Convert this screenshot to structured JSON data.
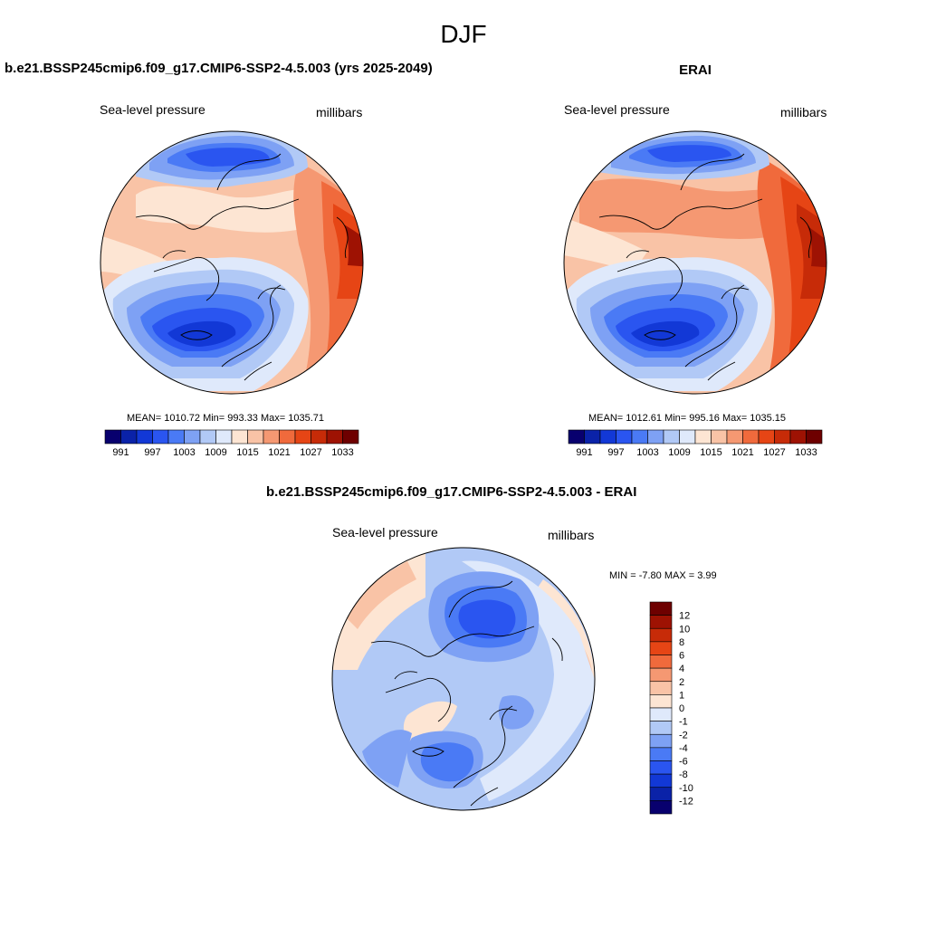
{
  "main_title": "DJF",
  "panels": [
    {
      "title": "b.e21.BSSP245cmip6.f09_g17.CMIP6-SSP2-4.5.003 (yrs 2025-2049)",
      "left_label": "Sea-level pressure",
      "right_label": "millibars",
      "stats_text": "MEAN= 1010.72  Min= 993.33  Max= 1035.71"
    },
    {
      "title": "ERAI",
      "left_label": "Sea-level pressure",
      "right_label": "millibars",
      "stats_text": "MEAN= 1012.61  Min= 995.16  Max= 1035.15"
    },
    {
      "title": "b.e21.BSSP245cmip6.f09_g17.CMIP6-SSP2-4.5.003 - ERAI",
      "left_label": "Sea-level pressure",
      "right_label": "millibars",
      "stats_text": "MIN =  -7.80 MAX =   3.99"
    }
  ],
  "chart_data": [
    {
      "type": "heatmap",
      "projection": "north polar stereographic",
      "variable": "Sea-level pressure",
      "units": "millibars",
      "summary": {
        "mean": 1010.72,
        "min": 993.33,
        "max": 1035.71
      },
      "colorbar": {
        "orientation": "horizontal",
        "levels": [
          991,
          994,
          997,
          1000,
          1003,
          1006,
          1009,
          1012,
          1015,
          1018,
          1021,
          1024,
          1027,
          1030,
          1033
        ],
        "tick_labels": [
          "991",
          "997",
          "1003",
          "1009",
          "1015",
          "1021",
          "1027",
          "1033"
        ],
        "colors": [
          "#08006e",
          "#0a22a8",
          "#1238d6",
          "#2a55f0",
          "#4a7af5",
          "#7ea1f4",
          "#b1c9f6",
          "#dfe9fb",
          "#fde5d3",
          "#f9c3a6",
          "#f59872",
          "#f06a3c",
          "#e64515",
          "#c72b08",
          "#9e1203",
          "#6e0000"
        ]
      }
    },
    {
      "type": "heatmap",
      "projection": "north polar stereographic",
      "variable": "Sea-level pressure",
      "units": "millibars",
      "summary": {
        "mean": 1012.61,
        "min": 995.16,
        "max": 1035.15
      },
      "colorbar": {
        "orientation": "horizontal",
        "levels": [
          991,
          994,
          997,
          1000,
          1003,
          1006,
          1009,
          1012,
          1015,
          1018,
          1021,
          1024,
          1027,
          1030,
          1033
        ],
        "tick_labels": [
          "991",
          "997",
          "1003",
          "1009",
          "1015",
          "1021",
          "1027",
          "1033"
        ],
        "colors": [
          "#08006e",
          "#0a22a8",
          "#1238d6",
          "#2a55f0",
          "#4a7af5",
          "#7ea1f4",
          "#b1c9f6",
          "#dfe9fb",
          "#fde5d3",
          "#f9c3a6",
          "#f59872",
          "#f06a3c",
          "#e64515",
          "#c72b08",
          "#9e1203",
          "#6e0000"
        ]
      }
    },
    {
      "type": "heatmap",
      "projection": "north polar stereographic",
      "variable": "Sea-level pressure difference",
      "units": "millibars",
      "summary": {
        "min": -7.8,
        "max": 3.99
      },
      "colorbar": {
        "orientation": "vertical",
        "levels": [
          -12,
          -10,
          -8,
          -6,
          -4,
          -2,
          -1,
          0,
          1,
          2,
          4,
          6,
          8,
          10,
          12
        ],
        "tick_labels": [
          "12",
          "10",
          "8",
          "6",
          "4",
          "2",
          "1",
          "0",
          "-1",
          "-2",
          "-4",
          "-6",
          "-8",
          "-10",
          "-12"
        ],
        "colors": [
          "#08006e",
          "#0a22a8",
          "#1238d6",
          "#2a55f0",
          "#4a7af5",
          "#7ea1f4",
          "#b1c9f6",
          "#dfe9fb",
          "#fde5d3",
          "#f9c3a6",
          "#f59872",
          "#f06a3c",
          "#e64515",
          "#c72b08",
          "#9e1203",
          "#6e0000"
        ]
      }
    }
  ]
}
